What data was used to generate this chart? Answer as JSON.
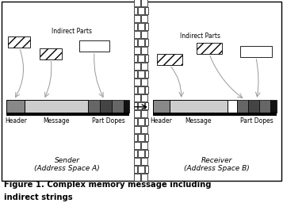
{
  "title_line1": "Figure 1. Complex memory message including",
  "title_line2": "indirect strings",
  "background_color": "#ffffff",
  "sender_label": "Sender\n(Address Space A)",
  "receiver_label": "Receiver\n(Address Space B)",
  "indirect_parts_label": "Indirect Parts",
  "header_label": "Header",
  "message_label": "Message",
  "part_dopes_label": "Part Dopes",
  "wall_color": "#ffffff",
  "header_color": "#888888",
  "message_color": "#cccccc",
  "pd_color1": "#666666",
  "pd_color2": "#444444",
  "black": "#000000",
  "gray_arrow": "#999999"
}
